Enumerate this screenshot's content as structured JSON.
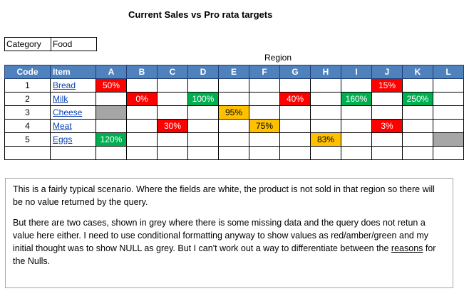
{
  "title": "Current Sales vs Pro rata targets",
  "category": {
    "label": "Category",
    "value": "Food"
  },
  "region_label": "Region",
  "columns": {
    "code": "Code",
    "item": "Item",
    "regions": [
      "A",
      "B",
      "C",
      "D",
      "E",
      "F",
      "G",
      "H",
      "I",
      "J",
      "K",
      "L"
    ]
  },
  "rows": [
    {
      "code": "1",
      "item": "Bread",
      "cells": [
        {
          "text": "50%",
          "status": "red"
        },
        {
          "text": "",
          "status": ""
        },
        {
          "text": "",
          "status": ""
        },
        {
          "text": "",
          "status": ""
        },
        {
          "text": "",
          "status": ""
        },
        {
          "text": "",
          "status": ""
        },
        {
          "text": "",
          "status": ""
        },
        {
          "text": "",
          "status": ""
        },
        {
          "text": "",
          "status": ""
        },
        {
          "text": "15%",
          "status": "red"
        },
        {
          "text": "",
          "status": ""
        },
        {
          "text": "",
          "status": ""
        }
      ]
    },
    {
      "code": "2",
      "item": "Milk",
      "cells": [
        {
          "text": "",
          "status": ""
        },
        {
          "text": "0%",
          "status": "red"
        },
        {
          "text": "",
          "status": ""
        },
        {
          "text": "100%",
          "status": "green"
        },
        {
          "text": "",
          "status": ""
        },
        {
          "text": "",
          "status": ""
        },
        {
          "text": "40%",
          "status": "red"
        },
        {
          "text": "",
          "status": ""
        },
        {
          "text": "160%",
          "status": "green"
        },
        {
          "text": "",
          "status": ""
        },
        {
          "text": "250%",
          "status": "green"
        },
        {
          "text": "",
          "status": ""
        }
      ]
    },
    {
      "code": "3",
      "item": "Cheese",
      "cells": [
        {
          "text": "",
          "status": "grey"
        },
        {
          "text": "",
          "status": ""
        },
        {
          "text": "",
          "status": ""
        },
        {
          "text": "",
          "status": ""
        },
        {
          "text": "95%",
          "status": "amber"
        },
        {
          "text": "",
          "status": ""
        },
        {
          "text": "",
          "status": ""
        },
        {
          "text": "",
          "status": ""
        },
        {
          "text": "",
          "status": ""
        },
        {
          "text": "",
          "status": ""
        },
        {
          "text": "",
          "status": ""
        },
        {
          "text": "",
          "status": ""
        }
      ]
    },
    {
      "code": "4",
      "item": "Meat",
      "cells": [
        {
          "text": "",
          "status": ""
        },
        {
          "text": "",
          "status": ""
        },
        {
          "text": "30%",
          "status": "red"
        },
        {
          "text": "",
          "status": ""
        },
        {
          "text": "",
          "status": ""
        },
        {
          "text": "75%",
          "status": "amber"
        },
        {
          "text": "",
          "status": ""
        },
        {
          "text": "",
          "status": ""
        },
        {
          "text": "",
          "status": ""
        },
        {
          "text": "3%",
          "status": "red"
        },
        {
          "text": "",
          "status": ""
        },
        {
          "text": "",
          "status": ""
        }
      ]
    },
    {
      "code": "5",
      "item": "Eggs",
      "cells": [
        {
          "text": "120%",
          "status": "green"
        },
        {
          "text": "",
          "status": ""
        },
        {
          "text": "",
          "status": ""
        },
        {
          "text": "",
          "status": ""
        },
        {
          "text": "",
          "status": ""
        },
        {
          "text": "",
          "status": ""
        },
        {
          "text": "",
          "status": ""
        },
        {
          "text": "83%",
          "status": "amber"
        },
        {
          "text": "",
          "status": ""
        },
        {
          "text": "",
          "status": ""
        },
        {
          "text": "",
          "status": ""
        },
        {
          "text": "",
          "status": "grey"
        }
      ]
    }
  ],
  "note": {
    "p1": "This is a fairly typical scenario.  Where the fields are white, the product is not sold in that region so there will be no value returned by the query.",
    "p2_start": "But there are two cases, shown in grey where  there is some missing data and the query does not retun a value here either.  I need to use conditional formatting anyway to show values as red/amber/green and my initial  thought was to show NULL as grey.  But I can't work out a way to differentiate between the ",
    "p2_underlined": "reasons",
    "p2_end": " for the Nulls."
  },
  "colors": {
    "header": "#4f81bd",
    "red": "#ff0000",
    "green": "#00b050",
    "amber": "#ffc000",
    "grey": "#a6a6a6",
    "link": "#0b41b6"
  }
}
